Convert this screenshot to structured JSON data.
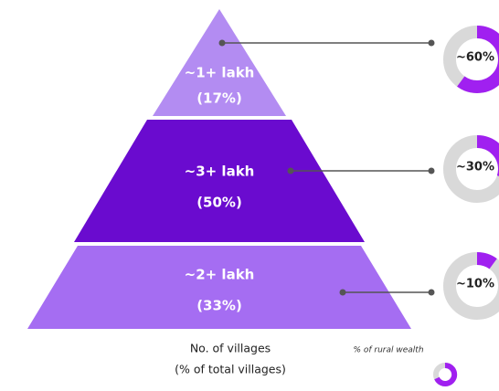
{
  "tiers": [
    {
      "label": "~1+ lakh",
      "share": "(17%)",
      "wealth": {
        "label": "~60%",
        "value": 60
      }
    },
    {
      "label": "~3+ lakh",
      "share": "(50%)",
      "wealth": {
        "label": "~30%",
        "value": 30
      }
    },
    {
      "label": "~2+ lakh",
      "share": "(33%)",
      "wealth": {
        "label": "~10%",
        "value": 10
      }
    }
  ],
  "footer": {
    "villages_label": "No. of villages",
    "villages_sub": "(% of total villages)",
    "wealth_legend": "% of rural wealth"
  }
}
